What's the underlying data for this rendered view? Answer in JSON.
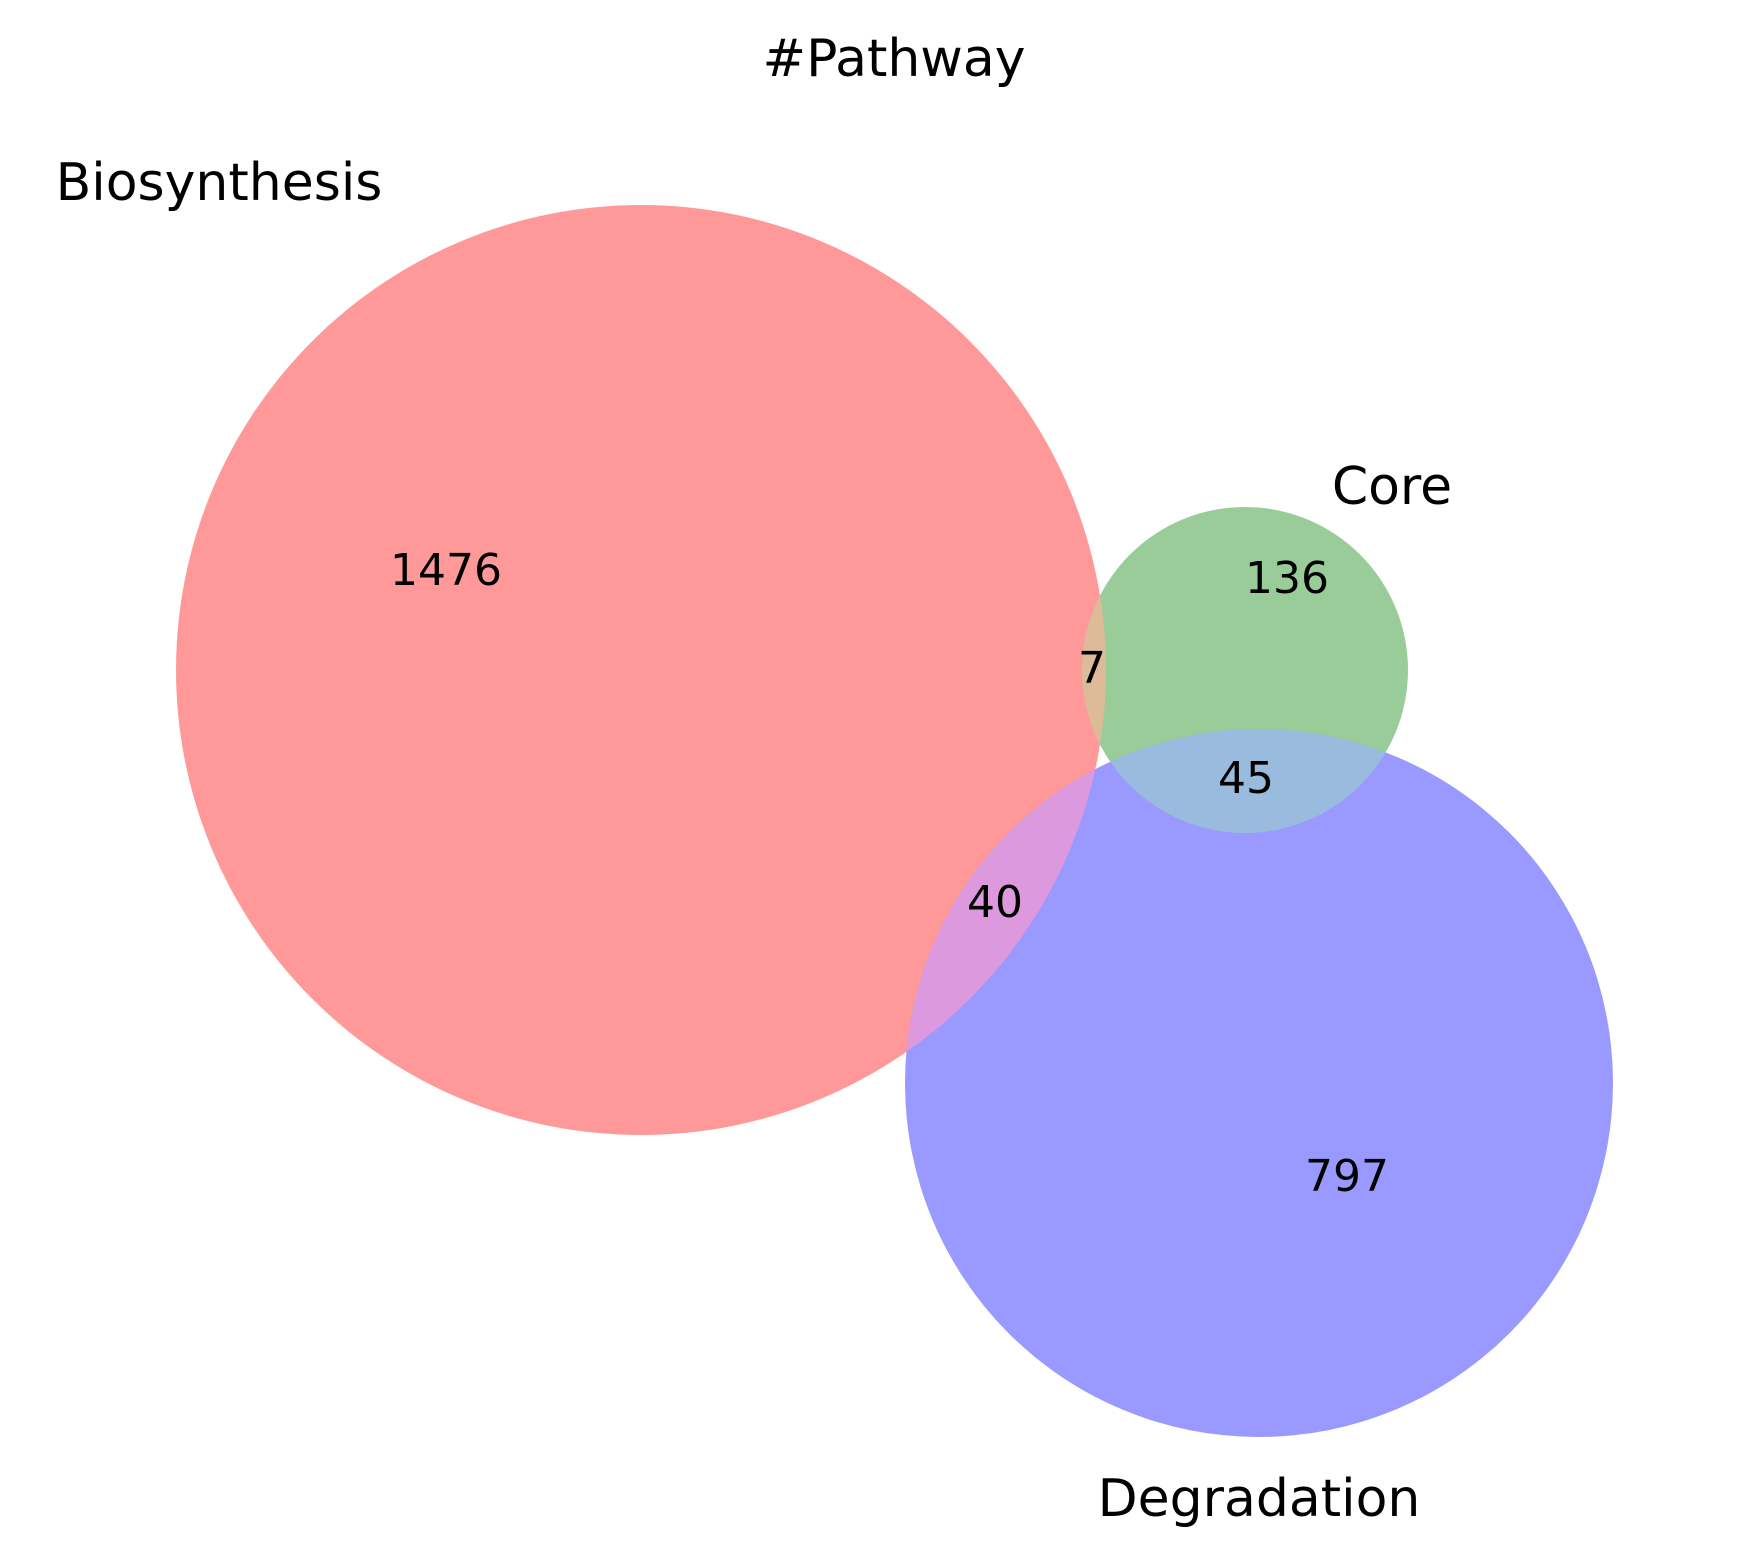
{
  "title": "#Pathway",
  "sets": {
    "biosynthesis": {
      "label": "Biosynthesis",
      "color": "#ff9999"
    },
    "core": {
      "label": "Core",
      "color": "#99cc99"
    },
    "degradation": {
      "label": "Degradation",
      "color": "#9999ff"
    }
  },
  "regions": {
    "biosynthesis_only": "1476",
    "core_only": "136",
    "degradation_only": "797",
    "biosynthesis_core": "7",
    "core_degradation": "45",
    "biosynthesis_degradation": "40"
  },
  "overlap_colors": {
    "biosynthesis_core": "#ddbb99",
    "core_degradation": "#99bbdd",
    "biosynthesis_degradation": "#dd99dd"
  }
}
